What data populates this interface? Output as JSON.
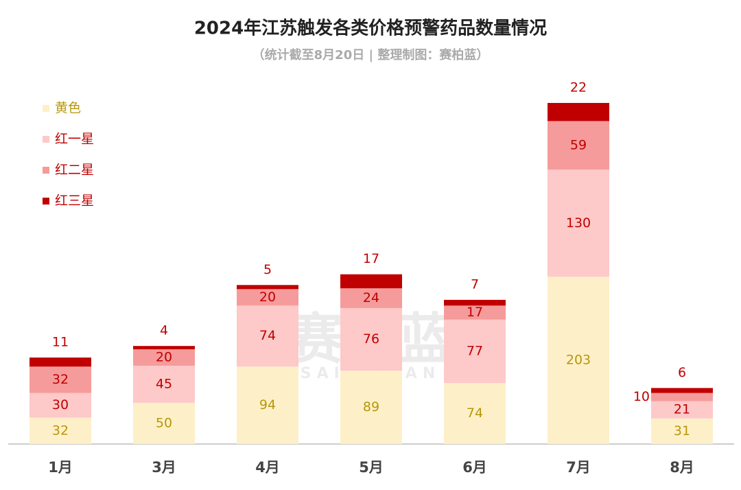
{
  "chart_data": {
    "type": "stacked_bar",
    "title": "2024年江苏触发各类价格预警药品数量情况",
    "subtitle": "（统计截至8月20日 | 整理制图：赛柏蓝）",
    "watermark": "赛柏蓝",
    "watermark_sub": "SAIBAILAN",
    "categories": [
      "1月",
      "3月",
      "4月",
      "5月",
      "6月",
      "7月",
      "8月"
    ],
    "series": [
      {
        "name": "黄色",
        "color": "#fdf0c8",
        "label_color": "#b8960b",
        "values": [
          32,
          50,
          94,
          89,
          74,
          203,
          31
        ]
      },
      {
        "name": "红一星",
        "color": "#fdc9c9",
        "label_color": "#c00000",
        "values": [
          30,
          45,
          74,
          76,
          77,
          130,
          21
        ]
      },
      {
        "name": "红二星",
        "color": "#f59b9b",
        "label_color": "#c00000",
        "values": [
          32,
          20,
          20,
          24,
          17,
          59,
          10
        ]
      },
      {
        "name": "红三星",
        "color": "#c00000",
        "label_color": "#c00000",
        "values": [
          11,
          4,
          5,
          17,
          7,
          22,
          6
        ]
      }
    ],
    "legend": "top-left"
  }
}
